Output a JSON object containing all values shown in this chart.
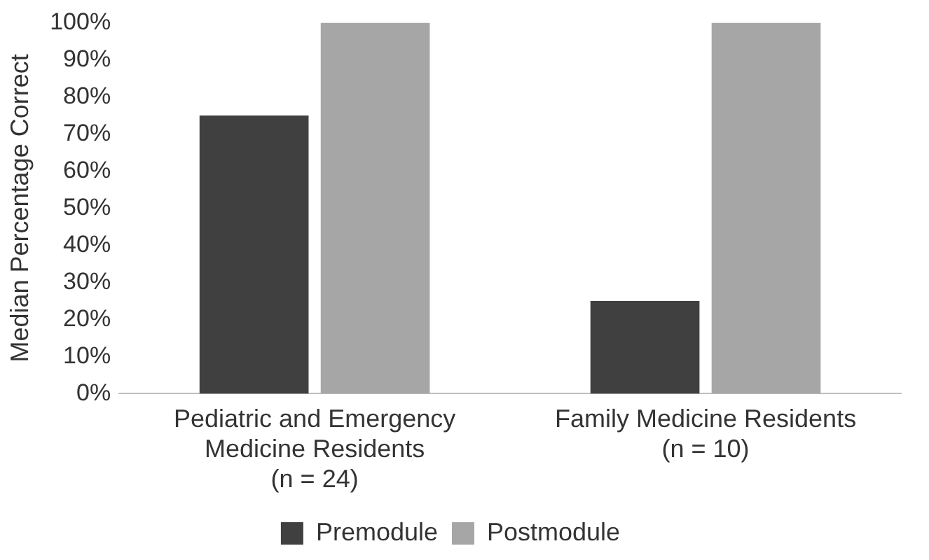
{
  "chart_data": {
    "type": "bar",
    "ylabel": "Median Percentage Correct",
    "categories": [
      "Pediatric and Emergency Medicine Residents (n = 24)",
      "Family Medicine Residents (n = 10)"
    ],
    "series": [
      {
        "name": "Premodule",
        "color": "#404040",
        "values": [
          75,
          25
        ]
      },
      {
        "name": "Postmodule",
        "color": "#a6a6a6",
        "values": [
          100,
          100
        ]
      }
    ],
    "ylim": [
      0,
      100
    ],
    "yticks": [
      {
        "value": 0,
        "label": "0%"
      },
      {
        "value": 10,
        "label": "10%"
      },
      {
        "value": 20,
        "label": "20%"
      },
      {
        "value": 30,
        "label": "30%"
      },
      {
        "value": 40,
        "label": "40%"
      },
      {
        "value": 50,
        "label": "50%"
      },
      {
        "value": 60,
        "label": "60%"
      },
      {
        "value": 70,
        "label": "70%"
      },
      {
        "value": 80,
        "label": "80%"
      },
      {
        "value": 90,
        "label": "90%"
      },
      {
        "value": 100,
        "label": "100%"
      }
    ],
    "grid": false,
    "legend": "bottom"
  }
}
